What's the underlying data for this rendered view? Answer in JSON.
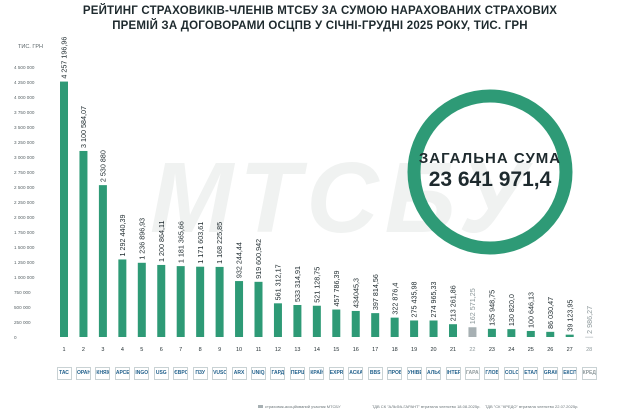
{
  "header": {
    "title": "РЕЙТИНГ СТРАХОВИКІВ-ЧЛЕНІВ МТСБУ ЗА СУМОЮ НАРАХОВАНИХ СТРАХОВИХ ПРЕМІЙ ЗА ДОГОВОРАМИ ОСЦПВ У СІЧНІ-ГРУДНІ 2025 РОКУ, ТИС. ГРН",
    "unit_label": "ТИС. ГРН",
    "watermark": "МТСБУ"
  },
  "total": {
    "label": "ЗАГАЛЬНА СУМА",
    "value": "23 641 971,4",
    "ring_color": "#2e9a76"
  },
  "colors": {
    "bar": "#2e9a76",
    "bar_gray": "#a7b0b3",
    "text": "#1e2a2e",
    "grid": "#e6eaeb"
  },
  "footer": {
    "legend_note": "страховик-асоційований учасник МТСБУ",
    "note_1": "ТДВ СК \"АЛЬФА-ГАРАНТ\" втратила членство 18.08.2025р.",
    "note_2": "ТДВ \"СК \"КРЕДО\" втратила членство 22.07.2025р."
  },
  "chart_data": {
    "type": "bar",
    "title": "РЕЙТИНГ СТРАХОВИКІВ-ЧЛЕНІВ МТСБУ ЗА СУМОЮ НАРАХОВАНИХ СТРАХОВИХ ПРЕМІЙ ЗА ДОГОВОРАМИ ОСЦПВ У СІЧНІ-ГРУДНІ 2025 РОКУ, ТИС. ГРН",
    "ylabel": "ТИС. ГРН",
    "ylim": [
      0,
      4500000
    ],
    "yticks": [
      0,
      250000,
      500000,
      750000,
      1000000,
      1250000,
      1500000,
      1750000,
      2000000,
      2250000,
      2500000,
      2750000,
      3000000,
      3250000,
      3500000,
      3750000,
      4000000,
      4250000,
      4500000
    ],
    "ytick_labels": [
      "0",
      "250 000",
      "500 000",
      "750 000",
      "1 000 000",
      "1 250 000",
      "1 500 000",
      "1 750 000",
      "2 000 000",
      "2 250 000",
      "2 500 000",
      "2 750 000",
      "3 000 000",
      "3 250 000",
      "3 500 000",
      "3 750 000",
      "4 000 000",
      "4 250 000",
      "4 500 000"
    ],
    "grid": false,
    "categories": [
      "1",
      "2",
      "3",
      "4",
      "5",
      "6",
      "7",
      "8",
      "9",
      "10",
      "11",
      "12",
      "13",
      "14",
      "15",
      "16",
      "17",
      "18",
      "19",
      "20",
      "21",
      "22",
      "23",
      "24",
      "25",
      "26",
      "27",
      "28"
    ],
    "values": [
      4257196.96,
      3100584.07,
      2530880,
      1292440.39,
      1236896.93,
      1200864.11,
      1181365.66,
      1171603.61,
      1168225.85,
      932244.44,
      919600.942,
      561312.17,
      533314.91,
      521128.75,
      457786.39,
      434045.3,
      397814.56,
      322876.4,
      275435.98,
      274965.33,
      213261.86,
      162571.25,
      135948.75,
      130820.0,
      100646.13,
      86030.47,
      39123.95,
      2986.27
    ],
    "value_labels": [
      "4 257 196,96",
      "3 100 584,07",
      "2 530 880",
      "1 292 440,39",
      "1 236 896,93",
      "1 200 864,11",
      "1 181 365,66",
      "1 171 603,61",
      "1 168 225,85",
      "932 244,44",
      "919 600,942",
      "561 312,17",
      "533 314,91",
      "521 128,75",
      "457 786,39",
      "434045,3",
      "397 814,56",
      "322 876,4",
      "275 435,98",
      "274 965,33",
      "213 261,86",
      "162 571,25",
      "135 948,75",
      "130 820,0",
      "100 646,13",
      "86 030,47",
      "39 123,95",
      "2 986,27"
    ],
    "associated": [
      false,
      false,
      false,
      false,
      false,
      false,
      false,
      false,
      false,
      false,
      false,
      false,
      false,
      false,
      false,
      false,
      false,
      false,
      false,
      false,
      false,
      true,
      false,
      false,
      false,
      false,
      false,
      true
    ],
    "logos": [
      "ТАС",
      "ОРАНТА",
      "КНЯЖА",
      "АРСЕНАЛ",
      "INGO",
      "USG",
      "ЄВРОІНС",
      "ПЗУ",
      "VUSO",
      "ARX",
      "UNIQA",
      "ГАРДІАН",
      "ПЕРША",
      "КРАЇНА",
      "EXPRESS",
      "АСКА",
      "BBS",
      "ПРОВІДНА",
      "УНІВЕРСАЛЬНА",
      "АЛЬФА",
      "ІНТЕР",
      "ГАРАНТ",
      "ГЛОБУС",
      "COLONNADE",
      "ЕТАЛОН",
      "GRAWE",
      "ЕКСПРЕС",
      "КРЕДО"
    ]
  }
}
